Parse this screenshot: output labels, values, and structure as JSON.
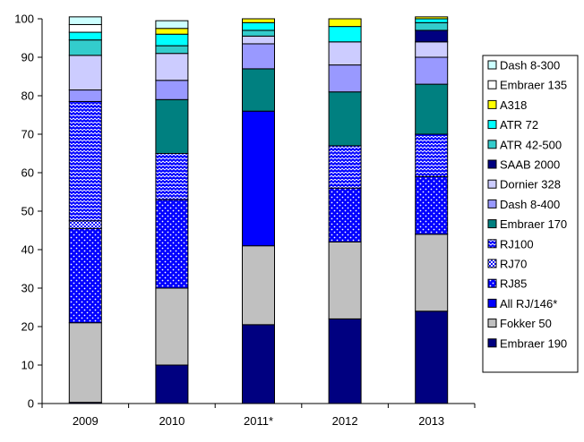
{
  "chart_data": {
    "type": "bar",
    "stacked": true,
    "title": "",
    "xlabel": "",
    "ylabel": "",
    "ylim": [
      0,
      100
    ],
    "yticks": [
      0,
      10,
      20,
      30,
      40,
      50,
      60,
      70,
      80,
      90,
      100
    ],
    "categories": [
      "2009",
      "2010",
      "2011*",
      "2012",
      "2013"
    ],
    "legend_position": "right",
    "series": [
      {
        "name": "Embraer 190",
        "color": "#000080",
        "pattern": "solid",
        "values": [
          0.3,
          10,
          20.5,
          22,
          24
        ]
      },
      {
        "name": "Fokker 50",
        "color": "#c0c0c0",
        "pattern": "solid",
        "values": [
          20.7,
          20,
          20.5,
          20,
          20
        ]
      },
      {
        "name": "All RJ/146*",
        "color": "#0000ff",
        "pattern": "solid",
        "values": [
          0,
          0,
          35,
          0,
          0
        ]
      },
      {
        "name": "RJ85",
        "color": "#0000ff",
        "pattern": "dots",
        "values": [
          24.5,
          23,
          0,
          14,
          15
        ]
      },
      {
        "name": "RJ70",
        "color": "#0000ff",
        "pattern": "checker",
        "values": [
          2,
          0,
          0,
          0,
          0
        ]
      },
      {
        "name": "RJ100",
        "color": "#0000ff",
        "pattern": "zigzag",
        "values": [
          31,
          12,
          0,
          11,
          11
        ]
      },
      {
        "name": "Embraer 170",
        "color": "#008080",
        "pattern": "solid",
        "values": [
          0,
          14,
          11,
          14,
          13
        ]
      },
      {
        "name": "Dash 8-400",
        "color": "#9999ff",
        "pattern": "solid",
        "values": [
          3,
          5,
          6.5,
          7,
          7
        ]
      },
      {
        "name": "Dornier 328",
        "color": "#ccccff",
        "pattern": "solid",
        "values": [
          9,
          7,
          2,
          6,
          4
        ]
      },
      {
        "name": "SAAB 2000",
        "color": "#000080",
        "pattern": "solid",
        "values": [
          0,
          0,
          0,
          0,
          3
        ]
      },
      {
        "name": "ATR 42-500",
        "color": "#33cccc",
        "pattern": "solid",
        "values": [
          4,
          2,
          1.5,
          0,
          2
        ]
      },
      {
        "name": "ATR 72",
        "color": "#00ffff",
        "pattern": "solid",
        "values": [
          2,
          3,
          2,
          4,
          1
        ]
      },
      {
        "name": "A318",
        "color": "#ffff00",
        "pattern": "solid",
        "values": [
          0,
          1.5,
          1,
          2,
          0.5
        ]
      },
      {
        "name": "Embraer 135",
        "color": "#ffffff",
        "pattern": "solid",
        "values": [
          2,
          0,
          0,
          0,
          0
        ]
      },
      {
        "name": "Dash 8-300",
        "color": "#ccffff",
        "pattern": "solid",
        "values": [
          2,
          2,
          0,
          0,
          0
        ]
      }
    ]
  }
}
